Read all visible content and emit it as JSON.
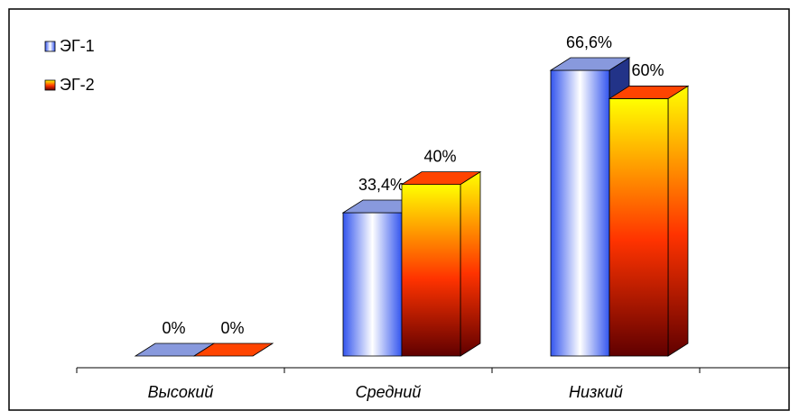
{
  "chart_data": {
    "type": "bar",
    "categories": [
      "Высокий",
      "Средний",
      "Низкий"
    ],
    "series": [
      {
        "name": "ЭГ-1",
        "color": "#3355ee",
        "values": [
          0,
          33.4,
          66.6
        ],
        "value_labels": [
          "0%",
          "33,4%",
          "66,6%"
        ]
      },
      {
        "name": "ЭГ-2",
        "color": "#ff3300",
        "values": [
          0,
          40,
          60
        ],
        "value_labels": [
          "0%",
          "40%",
          "60%"
        ]
      }
    ]
  }
}
